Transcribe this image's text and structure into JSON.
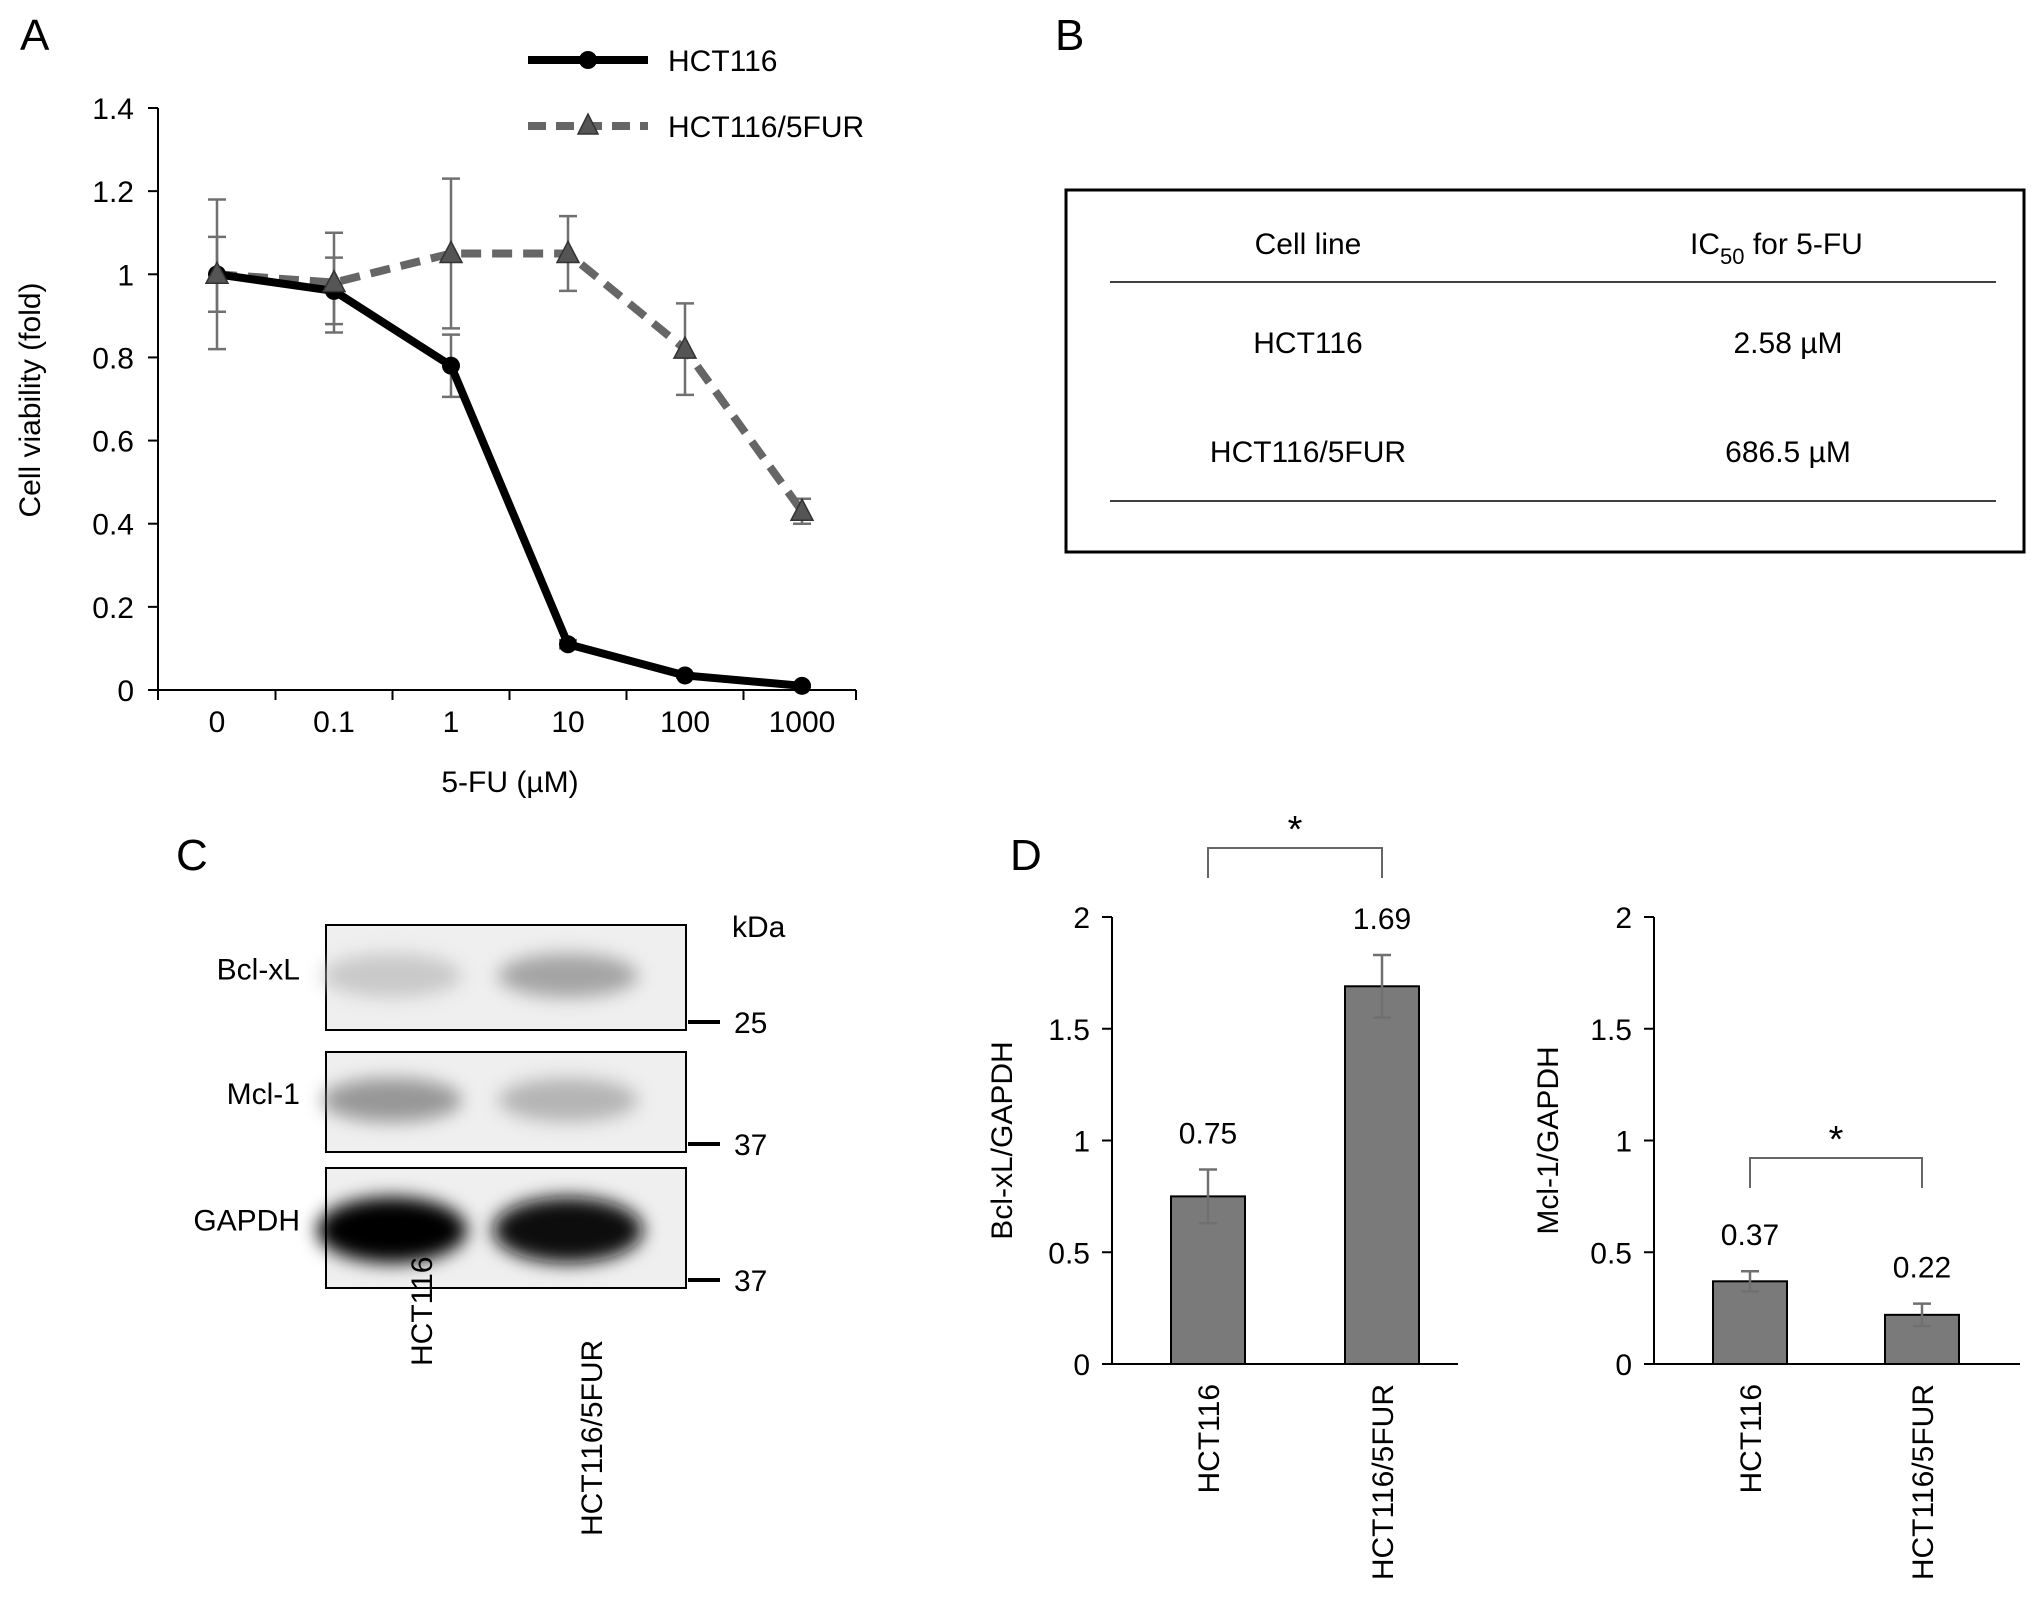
{
  "panel_labels": {
    "a": "A",
    "b": "B",
    "c": "C",
    "d": "D"
  },
  "colors": {
    "series1": "#000000",
    "series2": "#666666",
    "bar": "#7a7a7a",
    "errorbar": "#707070"
  },
  "chart_data": [
    {
      "id": "A",
      "type": "line",
      "title": "",
      "xlabel": "5-FU (µM)",
      "ylabel": "Cell viability (fold)",
      "x": [
        "0",
        "0.1",
        "1",
        "10",
        "100",
        "1000"
      ],
      "ylim": [
        0,
        1.4
      ],
      "yticks": [
        "0",
        "0.2",
        "0.4",
        "0.6",
        "0.8",
        "1",
        "1.2",
        "1.4"
      ],
      "grid": false,
      "legend_position": "top-center",
      "series": [
        {
          "name": "HCT116",
          "marker": "circle",
          "style": "solid",
          "values": [
            1.0,
            0.96,
            0.78,
            0.11,
            0.035,
            0.01
          ],
          "errors": [
            0.09,
            0.08,
            0.075,
            0.01,
            0.005,
            0.003
          ]
        },
        {
          "name": "HCT116/5FUR",
          "marker": "triangle",
          "style": "dashed",
          "values": [
            1.0,
            0.98,
            1.05,
            1.05,
            0.82,
            0.43
          ],
          "errors": [
            0.18,
            0.12,
            0.18,
            0.09,
            0.11,
            0.03
          ]
        }
      ]
    },
    {
      "id": "D1",
      "type": "bar",
      "title": "",
      "xlabel": "",
      "ylabel": "Bcl-xL/GAPDH",
      "categories": [
        "HCT116",
        "HCT116/5FUR"
      ],
      "values": [
        0.75,
        1.69
      ],
      "errors": [
        0.12,
        0.14
      ],
      "data_labels": [
        "0.75",
        "1.69"
      ],
      "ylim": [
        0,
        2
      ],
      "yticks": [
        "0",
        "0.5",
        "1",
        "1.5",
        "2"
      ],
      "significance": "*"
    },
    {
      "id": "D2",
      "type": "bar",
      "title": "",
      "xlabel": "",
      "ylabel": "Mcl-1/GAPDH",
      "categories": [
        "HCT116",
        "HCT116/5FUR"
      ],
      "values": [
        0.37,
        0.22
      ],
      "errors": [
        0.045,
        0.05
      ],
      "data_labels": [
        "0.37",
        "0.22"
      ],
      "ylim": [
        0,
        2
      ],
      "yticks": [
        "0",
        "0.5",
        "1",
        "1.5",
        "2"
      ],
      "significance": "*"
    }
  ],
  "table_b": {
    "headers": [
      "Cell line",
      "IC",
      "50",
      " for 5-FU"
    ],
    "rows": [
      {
        "cell_line": "HCT116",
        "ic50": "2.58 µM"
      },
      {
        "cell_line": "HCT116/5FUR",
        "ic50": "686.5 µM"
      }
    ]
  },
  "blot_c": {
    "unit_label": "kDa",
    "proteins": [
      {
        "name": "Bcl-xL",
        "marker": "25",
        "intensities": [
          0.16,
          0.34
        ]
      },
      {
        "name": "Mcl-1",
        "marker": "37",
        "intensities": [
          0.4,
          0.26
        ]
      },
      {
        "name": "GAPDH",
        "marker": "37",
        "intensities": [
          1.0,
          0.95
        ]
      }
    ],
    "lanes": [
      "HCT116",
      "HCT116/5FUR"
    ]
  }
}
